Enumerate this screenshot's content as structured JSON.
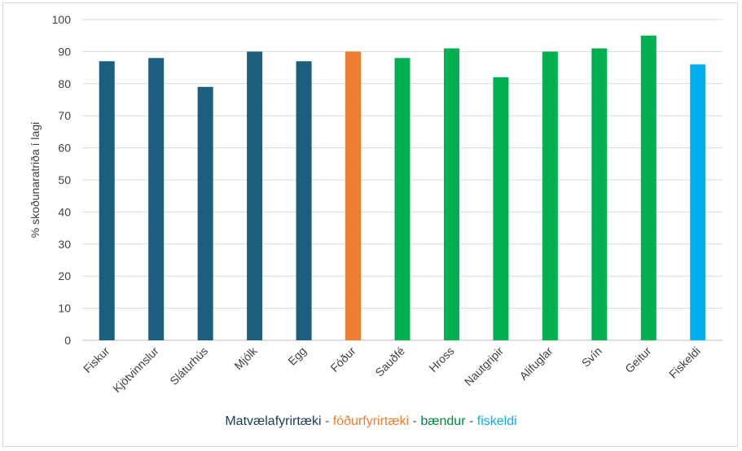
{
  "chart_data": {
    "type": "bar",
    "ylabel": "% skoðunaratriða í lagi",
    "ylim": [
      0,
      100
    ],
    "yticks": [
      0,
      10,
      20,
      30,
      40,
      50,
      60,
      70,
      80,
      90,
      100
    ],
    "grid": true,
    "categories": [
      "Fiskur",
      "Kjötvinnslur",
      "Sláturhús",
      "Mjólk",
      "Egg",
      "Fóður",
      "Sauðfé",
      "Hross",
      "Nautgripir",
      "Alifuglar",
      "Svín",
      "Geitur",
      "Fiskeldi"
    ],
    "values": [
      87,
      88,
      79,
      90,
      87,
      90,
      88,
      91,
      82,
      90,
      91,
      95,
      86
    ],
    "bar_colors": [
      "#1b5e7e",
      "#1b5e7e",
      "#1b5e7e",
      "#1b5e7e",
      "#1b5e7e",
      "#ed7d31",
      "#00b050",
      "#00b050",
      "#00b050",
      "#00b050",
      "#00b050",
      "#00b050",
      "#00b0f0"
    ]
  },
  "legend_caption": {
    "part1": "Matvælafyrirtæki",
    "sep1": " - ",
    "part2": "fóðurfyrirtæki",
    "sep2": " - ",
    "part3": "bændur",
    "sep3": " - ",
    "part4": "fiskeldi",
    "colors": {
      "part1": "#1b3a5c",
      "part2": "#ed7d31",
      "part3": "#00863d",
      "part4": "#00b0f0",
      "sep": "#595959"
    }
  }
}
